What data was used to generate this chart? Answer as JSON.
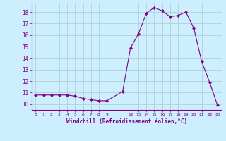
{
  "x": [
    0,
    1,
    2,
    3,
    4,
    5,
    6,
    7,
    8,
    9,
    11,
    12,
    13,
    14,
    15,
    16,
    17,
    18,
    19,
    20,
    21,
    22,
    23
  ],
  "y": [
    10.8,
    10.8,
    10.8,
    10.8,
    10.8,
    10.7,
    10.5,
    10.4,
    10.3,
    10.3,
    11.1,
    14.9,
    16.1,
    17.9,
    18.4,
    18.1,
    17.6,
    17.7,
    18.0,
    16.6,
    13.7,
    11.9,
    9.9
  ],
  "xlim": [
    -0.5,
    23.5
  ],
  "ylim": [
    9.5,
    18.8
  ],
  "yticks": [
    10,
    11,
    12,
    13,
    14,
    15,
    16,
    17,
    18
  ],
  "xticks": [
    0,
    1,
    2,
    3,
    4,
    5,
    6,
    7,
    8,
    9,
    12,
    13,
    14,
    15,
    16,
    17,
    18,
    19,
    20,
    21,
    22,
    23
  ],
  "xlabel": "Windchill (Refroidissement éolien,°C)",
  "line_color": "#800080",
  "marker": "D",
  "marker_size": 2,
  "bg_color": "#cceeff",
  "grid_color": "#aacccc",
  "tick_color": "#800080",
  "label_color": "#800080",
  "font_family": "monospace"
}
